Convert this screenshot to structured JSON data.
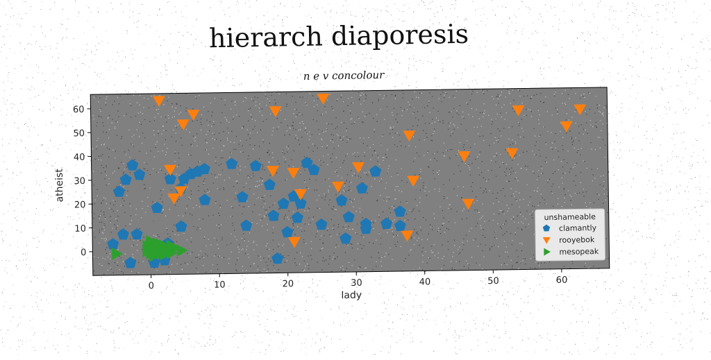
{
  "chart_data": {
    "type": "scatter",
    "title": "hierarch diaporesis",
    "subtitle": "n e v concolour",
    "xlabel": "lady",
    "ylabel": "atheist",
    "xlim": [
      -8.5,
      67
    ],
    "ylim": [
      -10,
      66
    ],
    "xticks": [
      0,
      10,
      20,
      30,
      40,
      50,
      60
    ],
    "yticks": [
      0,
      10,
      20,
      30,
      40,
      50,
      60
    ],
    "grid": false,
    "background": "#808080",
    "legend": {
      "title": "unshameable",
      "placement": "lower-right"
    },
    "series": [
      {
        "name": "clamantly",
        "marker": "pentagon",
        "color": "#1f77b4",
        "points": [
          [
            -2.5,
            36
          ],
          [
            -1.5,
            32
          ],
          [
            -3.5,
            30
          ],
          [
            -4.5,
            25
          ],
          [
            -5.5,
            3
          ],
          [
            -4,
            7
          ],
          [
            -2,
            7
          ],
          [
            -3,
            -5
          ],
          [
            0.5,
            -5
          ],
          [
            2,
            -4
          ],
          [
            2.5,
            3
          ],
          [
            1,
            18
          ],
          [
            3,
            30
          ],
          [
            5,
            30
          ],
          [
            4.5,
            26
          ],
          [
            6,
            32
          ],
          [
            7,
            33
          ],
          [
            8,
            34
          ],
          [
            4.5,
            10
          ],
          [
            8,
            21
          ],
          [
            12,
            36
          ],
          [
            13.5,
            22
          ],
          [
            14,
            10
          ],
          [
            15.5,
            35
          ],
          [
            17.5,
            27
          ],
          [
            18,
            14
          ],
          [
            18.5,
            -4
          ],
          [
            19.5,
            19
          ],
          [
            20,
            7
          ],
          [
            21,
            22
          ],
          [
            21.5,
            13
          ],
          [
            22,
            19
          ],
          [
            23,
            36
          ],
          [
            24,
            33
          ],
          [
            25,
            10
          ],
          [
            28,
            20
          ],
          [
            28.5,
            4
          ],
          [
            29,
            13
          ],
          [
            31,
            25
          ],
          [
            31.5,
            10
          ],
          [
            31.5,
            8
          ],
          [
            33,
            32
          ],
          [
            34.5,
            10
          ],
          [
            36.5,
            15
          ],
          [
            36.5,
            9
          ]
        ]
      },
      {
        "name": "rooyebok",
        "marker": "triangle-down",
        "color": "#ff7f0e",
        "points": [
          [
            1.5,
            63
          ],
          [
            5,
            53
          ],
          [
            6.5,
            57
          ],
          [
            18.5,
            58
          ],
          [
            25.5,
            63
          ],
          [
            3,
            34
          ],
          [
            3.5,
            22
          ],
          [
            4.5,
            25
          ],
          [
            18,
            33
          ],
          [
            21,
            32
          ],
          [
            22,
            23
          ],
          [
            21,
            3
          ],
          [
            27.5,
            26
          ],
          [
            30.5,
            34
          ],
          [
            37.5,
            5
          ],
          [
            38,
            47
          ],
          [
            38.5,
            28
          ],
          [
            46,
            38
          ],
          [
            46.5,
            18
          ],
          [
            53,
            39
          ],
          [
            54,
            57
          ],
          [
            61,
            50
          ],
          [
            63,
            57
          ]
        ]
      },
      {
        "name": "mesopeak",
        "marker": "triangle-right",
        "color": "#2ca02c",
        "points": [
          [
            -5,
            -1
          ],
          [
            -0.5,
            1
          ],
          [
            -0.5,
            0
          ],
          [
            0,
            3
          ],
          [
            0,
            -1
          ],
          [
            0.5,
            2
          ],
          [
            0.5,
            -2
          ],
          [
            1,
            0
          ],
          [
            1,
            1
          ],
          [
            1.5,
            -1
          ],
          [
            1,
            3
          ],
          [
            2,
            0
          ],
          [
            2,
            2
          ],
          [
            2.5,
            1
          ],
          [
            3,
            -1
          ],
          [
            3.5,
            1
          ],
          [
            0,
            4
          ],
          [
            1.5,
            2.5
          ],
          [
            4.5,
            0
          ],
          [
            -0.5,
            2
          ],
          [
            0.5,
            0.5
          ],
          [
            2,
            -1.5
          ],
          [
            3,
            2
          ],
          [
            1.5,
            0.5
          ]
        ]
      }
    ]
  }
}
